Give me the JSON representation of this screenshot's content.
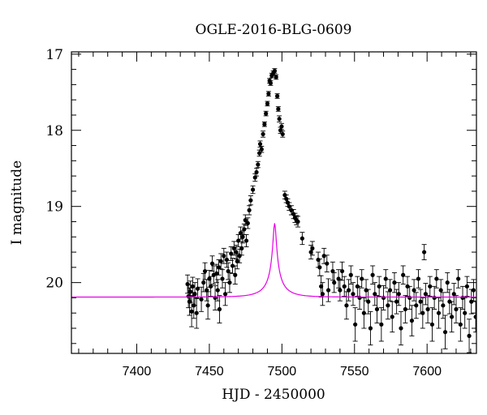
{
  "chart_data": {
    "type": "scatter",
    "title": "OGLE-2016-BLG-0609",
    "xlabel": "HJD - 2450000",
    "ylabel": "I magnitude",
    "xlim": [
      7355,
      7634
    ],
    "ylim": [
      20.93,
      16.97
    ],
    "y_inverted": true,
    "grid": false,
    "x_ticks": [
      7400,
      7450,
      7500,
      7550,
      7600
    ],
    "x_tick_labels": [
      "7400",
      "7450",
      "7500",
      "7550",
      "7600"
    ],
    "y_ticks": [
      17,
      18,
      19,
      20
    ],
    "y_tick_labels": [
      "17",
      "18",
      "19",
      "20"
    ],
    "model": {
      "color": "#e600e6",
      "t0": 7495.0,
      "tE": 14.6,
      "u0": 0.074,
      "fs": 0.115,
      "I_base": 20.19,
      "x_range": [
        7355,
        7634
      ]
    },
    "series": [
      {
        "color": "#000000",
        "points": [
          [
            7435.0,
            20.02,
            0.12
          ],
          [
            7435.6,
            20.18,
            0.15
          ],
          [
            7436.3,
            20.25,
            0.18
          ],
          [
            7437.0,
            20.12,
            0.14
          ],
          [
            7437.8,
            20.38,
            0.2
          ],
          [
            7438.5,
            20.05,
            0.12
          ],
          [
            7439.3,
            20.3,
            0.17
          ],
          [
            7440.0,
            20.15,
            0.15
          ],
          [
            7441.2,
            20.4,
            0.2
          ],
          [
            7442.0,
            20.08,
            0.13
          ],
          [
            7444.5,
            20.22,
            0.16
          ],
          [
            7446.0,
            20.0,
            0.12
          ],
          [
            7447.0,
            19.85,
            0.11
          ],
          [
            7448.2,
            20.1,
            0.14
          ],
          [
            7449.0,
            20.3,
            0.18
          ],
          [
            7450.0,
            19.95,
            0.11
          ],
          [
            7451.0,
            20.05,
            0.13
          ],
          [
            7452.0,
            19.75,
            0.1
          ],
          [
            7453.0,
            19.9,
            0.12
          ],
          [
            7454.0,
            20.2,
            0.16
          ],
          [
            7455.0,
            19.88,
            0.12
          ],
          [
            7455.8,
            20.1,
            0.14
          ],
          [
            7456.5,
            19.8,
            0.1
          ],
          [
            7457.0,
            20.35,
            0.18
          ],
          [
            7458.0,
            19.72,
            0.1
          ],
          [
            7459.0,
            19.95,
            0.12
          ],
          [
            7460.0,
            19.65,
            0.1
          ],
          [
            7461.0,
            20.15,
            0.15
          ],
          [
            7462.0,
            19.7,
            0.1
          ],
          [
            7463.0,
            19.85,
            0.11
          ],
          [
            7464.0,
            20.0,
            0.13
          ],
          [
            7465.0,
            19.62,
            0.09
          ],
          [
            7466.0,
            19.78,
            0.1
          ],
          [
            7467.0,
            19.55,
            0.09
          ],
          [
            7467.8,
            19.9,
            0.12
          ],
          [
            7468.5,
            19.6,
            0.09
          ],
          [
            7469.2,
            19.72,
            0.1
          ],
          [
            7470.0,
            19.45,
            0.08
          ],
          [
            7470.8,
            19.65,
            0.09
          ],
          [
            7471.5,
            19.35,
            0.08
          ],
          [
            7472.3,
            19.55,
            0.09
          ],
          [
            7473.0,
            19.4,
            0.08
          ],
          [
            7474.0,
            19.3,
            0.07
          ],
          [
            7474.8,
            19.18,
            0.07
          ],
          [
            7475.5,
            19.45,
            0.08
          ],
          [
            7476.5,
            19.22,
            0.07
          ],
          [
            7477.5,
            19.05,
            0.06
          ],
          [
            7478.5,
            18.92,
            0.06
          ],
          [
            7480.0,
            18.78,
            0.05
          ],
          [
            7481.5,
            18.62,
            0.05
          ],
          [
            7482.5,
            18.55,
            0.05
          ],
          [
            7483.5,
            18.45,
            0.04
          ],
          [
            7484.5,
            18.3,
            0.04
          ],
          [
            7485.0,
            18.18,
            0.04
          ],
          [
            7486.0,
            18.25,
            0.04
          ],
          [
            7487.0,
            18.05,
            0.04
          ],
          [
            7488.0,
            17.92,
            0.03
          ],
          [
            7489.0,
            17.78,
            0.03
          ],
          [
            7490.0,
            17.65,
            0.03
          ],
          [
            7490.8,
            17.52,
            0.03
          ],
          [
            7491.5,
            17.35,
            0.03
          ],
          [
            7492.2,
            17.38,
            0.03
          ],
          [
            7493.0,
            17.28,
            0.03
          ],
          [
            7494.0,
            17.25,
            0.03
          ],
          [
            7495.0,
            17.22,
            0.03
          ],
          [
            7496.0,
            17.3,
            0.03
          ],
          [
            7496.8,
            17.55,
            0.03
          ],
          [
            7497.5,
            17.72,
            0.03
          ],
          [
            7498.2,
            17.85,
            0.04
          ],
          [
            7499.0,
            18.0,
            0.04
          ],
          [
            7499.8,
            17.95,
            0.04
          ],
          [
            7500.5,
            18.05,
            0.04
          ],
          [
            7502.0,
            18.85,
            0.05
          ],
          [
            7503.0,
            18.9,
            0.05
          ],
          [
            7504.0,
            18.95,
            0.05
          ],
          [
            7505.0,
            19.0,
            0.05
          ],
          [
            7506.5,
            19.05,
            0.06
          ],
          [
            7508.0,
            19.1,
            0.06
          ],
          [
            7509.0,
            19.15,
            0.06
          ],
          [
            7510.0,
            19.18,
            0.06
          ],
          [
            7511.0,
            19.2,
            0.07
          ],
          [
            7514.0,
            19.42,
            0.08
          ],
          [
            7520.0,
            19.6,
            0.09
          ],
          [
            7521.0,
            19.55,
            0.09
          ],
          [
            7525.0,
            19.7,
            0.1
          ],
          [
            7526.0,
            19.8,
            0.11
          ],
          [
            7527.0,
            20.05,
            0.14
          ],
          [
            7528.0,
            20.15,
            0.15
          ],
          [
            7529.0,
            19.65,
            0.1
          ],
          [
            7531.0,
            19.75,
            0.11
          ],
          [
            7532.0,
            20.1,
            0.15
          ],
          [
            7535.0,
            19.85,
            0.12
          ],
          [
            7536.0,
            20.0,
            0.13
          ],
          [
            7539.0,
            19.95,
            0.12
          ],
          [
            7540.0,
            20.1,
            0.14
          ],
          [
            7541.5,
            19.85,
            0.12
          ],
          [
            7543.0,
            20.05,
            0.13
          ],
          [
            7544.5,
            20.3,
            0.18
          ],
          [
            7546.0,
            20.1,
            0.14
          ],
          [
            7547.5,
            19.9,
            0.12
          ],
          [
            7549.0,
            20.15,
            0.15
          ],
          [
            7550.5,
            20.55,
            0.22
          ],
          [
            7552.0,
            20.05,
            0.13
          ],
          [
            7553.5,
            20.2,
            0.15
          ],
          [
            7555.0,
            19.95,
            0.12
          ],
          [
            7556.5,
            20.4,
            0.2
          ],
          [
            7558.0,
            20.1,
            0.14
          ],
          [
            7559.5,
            20.25,
            0.16
          ],
          [
            7561.0,
            20.6,
            0.22
          ],
          [
            7562.5,
            19.9,
            0.12
          ],
          [
            7564.0,
            20.15,
            0.15
          ],
          [
            7565.5,
            20.35,
            0.18
          ],
          [
            7567.0,
            20.05,
            0.13
          ],
          [
            7568.5,
            20.55,
            0.22
          ],
          [
            7570.0,
            20.2,
            0.16
          ],
          [
            7571.5,
            19.95,
            0.12
          ],
          [
            7573.0,
            20.3,
            0.18
          ],
          [
            7574.5,
            20.1,
            0.14
          ],
          [
            7576.0,
            20.45,
            0.2
          ],
          [
            7577.5,
            20.0,
            0.13
          ],
          [
            7579.0,
            20.25,
            0.16
          ],
          [
            7580.5,
            20.15,
            0.15
          ],
          [
            7582.0,
            20.6,
            0.22
          ],
          [
            7583.5,
            19.9,
            0.12
          ],
          [
            7585.0,
            20.35,
            0.18
          ],
          [
            7586.5,
            20.05,
            0.13
          ],
          [
            7588.0,
            20.2,
            0.15
          ],
          [
            7589.5,
            20.5,
            0.2
          ],
          [
            7591.0,
            20.1,
            0.14
          ],
          [
            7592.5,
            20.3,
            0.17
          ],
          [
            7594.0,
            19.95,
            0.12
          ],
          [
            7595.5,
            20.25,
            0.16
          ],
          [
            7597.0,
            20.4,
            0.2
          ],
          [
            7598.0,
            19.6,
            0.1
          ],
          [
            7599.0,
            20.15,
            0.14
          ],
          [
            7600.5,
            20.35,
            0.18
          ],
          [
            7602.0,
            20.05,
            0.13
          ],
          [
            7603.5,
            20.55,
            0.22
          ],
          [
            7605.0,
            20.2,
            0.15
          ],
          [
            7606.5,
            19.95,
            0.12
          ],
          [
            7608.0,
            20.4,
            0.2
          ],
          [
            7609.5,
            20.1,
            0.14
          ],
          [
            7611.0,
            20.3,
            0.17
          ],
          [
            7612.5,
            20.65,
            0.22
          ],
          [
            7614.0,
            20.0,
            0.13
          ],
          [
            7615.5,
            20.25,
            0.16
          ],
          [
            7617.0,
            20.45,
            0.2
          ],
          [
            7618.5,
            20.15,
            0.14
          ],
          [
            7620.0,
            20.35,
            0.18
          ],
          [
            7621.5,
            19.95,
            0.12
          ],
          [
            7623.0,
            20.55,
            0.22
          ],
          [
            7624.5,
            20.2,
            0.15
          ],
          [
            7626.0,
            20.4,
            0.2
          ],
          [
            7627.5,
            20.05,
            0.13
          ],
          [
            7629.0,
            20.7,
            0.22
          ],
          [
            7630.5,
            20.25,
            0.16
          ],
          [
            7632.0,
            20.1,
            0.14
          ],
          [
            7633.5,
            20.45,
            0.2
          ]
        ]
      }
    ]
  }
}
